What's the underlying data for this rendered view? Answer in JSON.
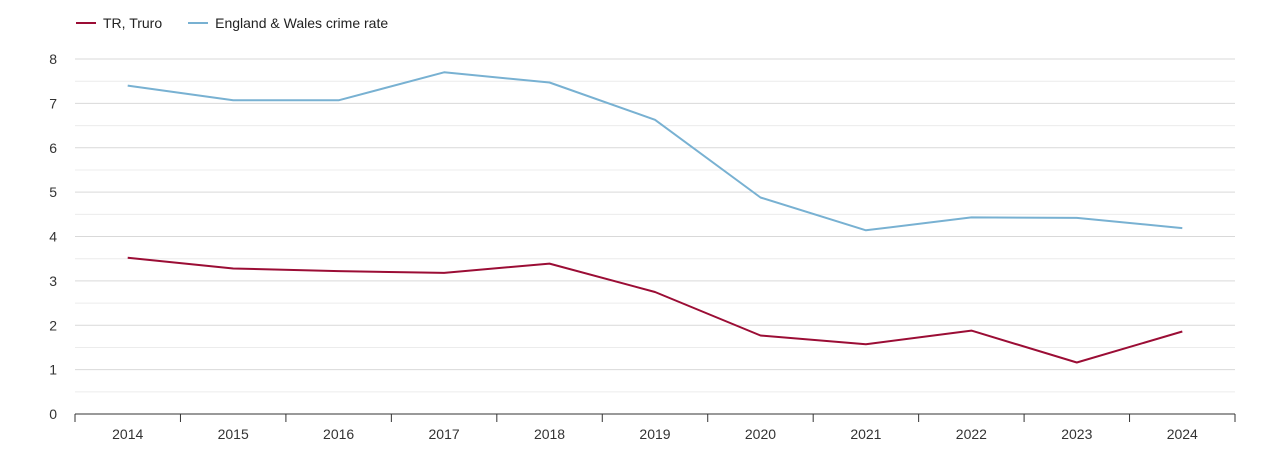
{
  "chart_data": {
    "type": "line",
    "title": "",
    "xlabel": "",
    "ylabel": "",
    "categories": [
      "2014",
      "2015",
      "2016",
      "2017",
      "2018",
      "2019",
      "2020",
      "2021",
      "2022",
      "2023",
      "2024"
    ],
    "ylim": [
      0,
      8
    ],
    "yticks": [
      "0",
      "1",
      "2",
      "3",
      "4",
      "5",
      "6",
      "7",
      "8"
    ],
    "grid": true,
    "legend_position": "top-left",
    "series": [
      {
        "name": "TR, Truro",
        "color": "#9b0d35",
        "values": [
          3.52,
          3.28,
          3.22,
          3.18,
          3.39,
          2.75,
          1.77,
          1.57,
          1.88,
          1.16,
          1.86
        ]
      },
      {
        "name": "England & Wales crime rate",
        "color": "#78b1d2",
        "values": [
          7.4,
          7.07,
          7.07,
          7.7,
          7.47,
          6.63,
          4.88,
          4.14,
          4.43,
          4.42,
          4.19
        ]
      }
    ]
  }
}
